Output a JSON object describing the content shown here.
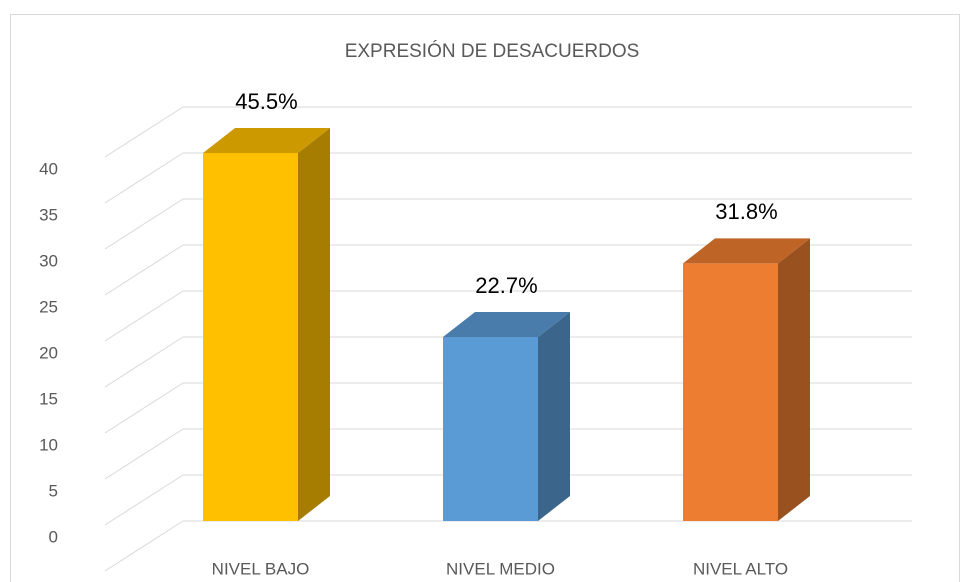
{
  "chart_data": {
    "type": "bar3d",
    "title": "EXPRESIÓN DE DESACUERDOS",
    "categories": [
      "NIVEL BAJO",
      "NIVEL MEDIO",
      "NIVEL ALTO"
    ],
    "values": [
      40,
      20,
      28
    ],
    "labels": [
      "45.5%",
      "22.7%",
      "31.8%"
    ],
    "colors": [
      "#FFC000",
      "#5B9BD5",
      "#ED7D31"
    ],
    "ylim": [
      0,
      45
    ],
    "yticks": [
      0,
      5,
      10,
      15,
      20,
      25,
      30,
      35,
      40
    ],
    "grid": true
  }
}
